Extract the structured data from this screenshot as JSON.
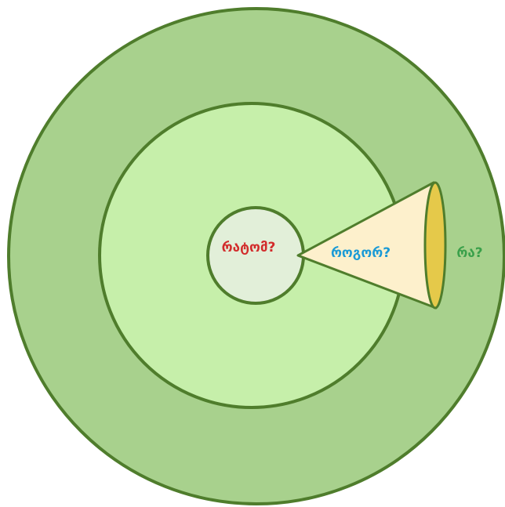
{
  "labels": {
    "why": "რატომ?",
    "how": "როგორ?",
    "what": "რა?"
  }
}
